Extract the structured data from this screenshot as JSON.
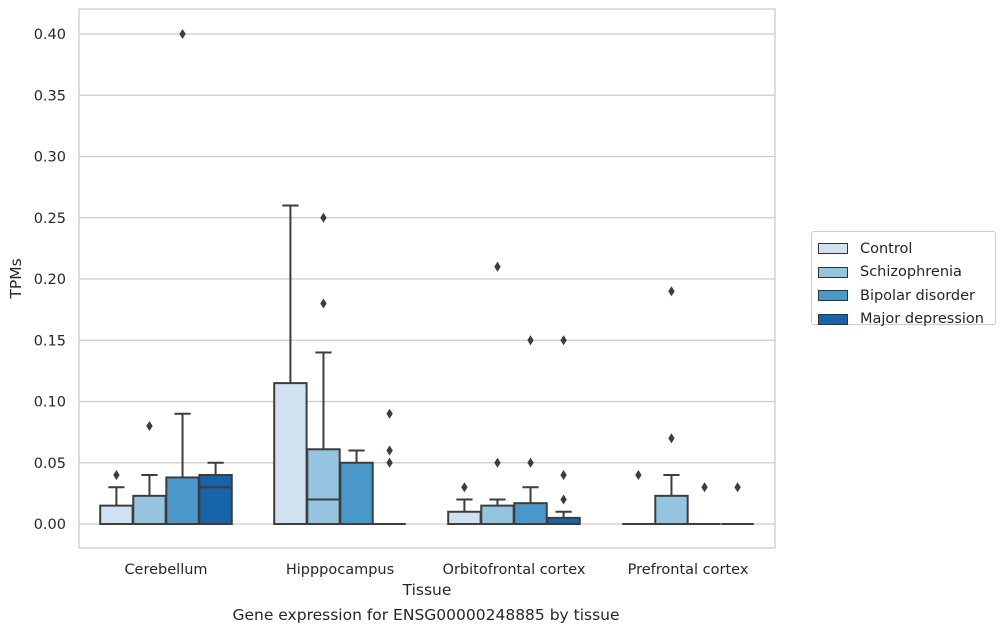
{
  "caption": "Gene expression for ENSG00000248885 by tissue",
  "chart_data": {
    "type": "box",
    "xlabel": "Tissue",
    "ylabel": "TPMs",
    "ylim": [
      -0.019,
      0.42
    ],
    "yticks": [
      0.0,
      0.05,
      0.1,
      0.15,
      0.2,
      0.25,
      0.3,
      0.35,
      0.4
    ],
    "ytick_labels": [
      "0.00",
      "0.05",
      "0.10",
      "0.15",
      "0.20",
      "0.25",
      "0.30",
      "0.35",
      "0.40"
    ],
    "grid": "horizontal",
    "legend_placement": "center-right, outside plot",
    "categories": [
      "Cerebellum",
      "Hipppocampus",
      "Orbitofrontal cortex",
      "Prefrontal cortex"
    ],
    "series": [
      {
        "name": "Control",
        "color": "#d0e1f2",
        "boxes": [
          {
            "q1": 0.0,
            "median": 0.0,
            "q3": 0.015,
            "whisker_low": 0.0,
            "whisker_high": 0.03,
            "outliers": [
              0.04
            ]
          },
          {
            "q1": 0.0,
            "median": 0.0,
            "q3": 0.115,
            "whisker_low": 0.0,
            "whisker_high": 0.26,
            "outliers": []
          },
          {
            "q1": 0.0,
            "median": 0.0,
            "q3": 0.01,
            "whisker_low": 0.0,
            "whisker_high": 0.02,
            "outliers": [
              0.03
            ]
          },
          {
            "q1": 0.0,
            "median": 0.0,
            "q3": 0.0,
            "whisker_low": 0.0,
            "whisker_high": 0.0,
            "outliers": [
              0.04
            ]
          }
        ]
      },
      {
        "name": "Schizophrenia",
        "color": "#94c4df",
        "boxes": [
          {
            "q1": 0.0,
            "median": 0.0,
            "q3": 0.023,
            "whisker_low": 0.0,
            "whisker_high": 0.04,
            "outliers": [
              0.08
            ]
          },
          {
            "q1": 0.0,
            "median": 0.02,
            "q3": 0.061,
            "whisker_low": 0.0,
            "whisker_high": 0.14,
            "outliers": [
              0.18,
              0.25
            ]
          },
          {
            "q1": 0.0,
            "median": 0.0,
            "q3": 0.015,
            "whisker_low": 0.0,
            "whisker_high": 0.02,
            "outliers": [
              0.05,
              0.21
            ]
          },
          {
            "q1": 0.0,
            "median": 0.0,
            "q3": 0.023,
            "whisker_low": 0.0,
            "whisker_high": 0.04,
            "outliers": [
              0.07,
              0.19
            ]
          }
        ]
      },
      {
        "name": "Bipolar disorder",
        "color": "#4a98c9",
        "boxes": [
          {
            "q1": 0.0,
            "median": 0.0,
            "q3": 0.038,
            "whisker_low": 0.0,
            "whisker_high": 0.09,
            "outliers": [
              0.4
            ]
          },
          {
            "q1": 0.0,
            "median": 0.0,
            "q3": 0.05,
            "whisker_low": 0.0,
            "whisker_high": 0.06,
            "outliers": []
          },
          {
            "q1": 0.0,
            "median": 0.0,
            "q3": 0.017,
            "whisker_low": 0.0,
            "whisker_high": 0.03,
            "outliers": [
              0.05,
              0.15
            ]
          },
          {
            "q1": 0.0,
            "median": 0.0,
            "q3": 0.0,
            "whisker_low": 0.0,
            "whisker_high": 0.0,
            "outliers": [
              0.03
            ]
          }
        ]
      },
      {
        "name": "Major depression",
        "color": "#1764ab",
        "boxes": [
          {
            "q1": 0.0,
            "median": 0.03,
            "q3": 0.04,
            "whisker_low": 0.0,
            "whisker_high": 0.05,
            "outliers": []
          },
          {
            "q1": 0.0,
            "median": 0.0,
            "q3": 0.0,
            "whisker_low": 0.0,
            "whisker_high": 0.0,
            "outliers": [
              0.05,
              0.06,
              0.09
            ]
          },
          {
            "q1": 0.0,
            "median": 0.0,
            "q3": 0.005,
            "whisker_low": 0.0,
            "whisker_high": 0.01,
            "outliers": [
              0.02,
              0.04,
              0.15
            ]
          },
          {
            "q1": 0.0,
            "median": 0.0,
            "q3": 0.0,
            "whisker_low": 0.0,
            "whisker_high": 0.0,
            "outliers": [
              0.03
            ]
          }
        ]
      }
    ]
  }
}
